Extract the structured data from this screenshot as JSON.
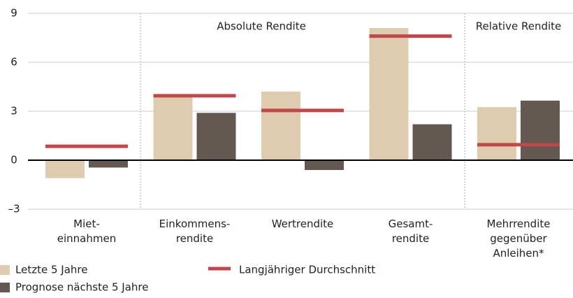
{
  "chart_data": {
    "type": "bar",
    "categories": [
      [
        "Miet-",
        "einnahmen"
      ],
      [
        "Einkommens-",
        "rendite"
      ],
      [
        "Wertrendite"
      ],
      [
        "Gesamt-",
        "rendite"
      ],
      [
        "Mehrrendite",
        "gegenüber",
        "Anleihen*"
      ]
    ],
    "series": [
      {
        "name": "Letzte 5 Jahre",
        "color": "#dfcbb0",
        "mark": "bar",
        "values": [
          -1.1,
          3.9,
          4.2,
          8.1,
          3.25
        ]
      },
      {
        "name": "Prognose nächste 5 Jahre",
        "color": "#645852",
        "mark": "bar",
        "values": [
          -0.45,
          2.9,
          -0.6,
          2.2,
          3.65
        ]
      },
      {
        "name": "Langjähriger Durchschnitt",
        "color": "#c0484a",
        "mark": "level",
        "values": [
          0.85,
          3.95,
          3.05,
          7.6,
          0.95
        ]
      }
    ],
    "annotations": [
      "Absolute Rendite",
      "Relative Rendite"
    ],
    "ylim": [
      -3,
      9
    ],
    "yticks": [
      {
        "value": -3,
        "label": "–3"
      },
      0,
      3,
      6,
      9
    ],
    "grid": true
  }
}
